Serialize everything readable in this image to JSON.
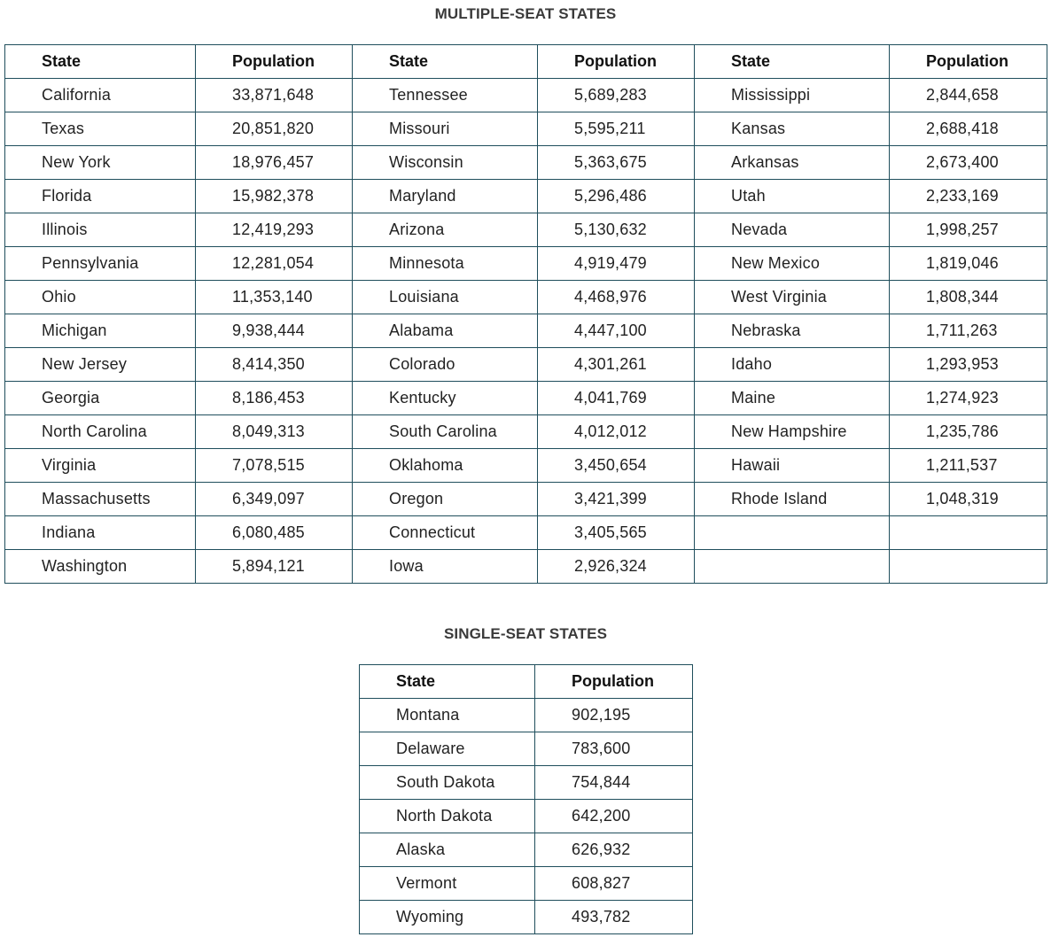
{
  "multi": {
    "title": "MULTIPLE-SEAT STATES",
    "headers": [
      "State",
      "Population",
      "State",
      "Population",
      "State",
      "Population"
    ],
    "rows": [
      [
        "California",
        "33,871,648",
        "Tennessee",
        "5,689,283",
        "Mississippi",
        "2,844,658"
      ],
      [
        "Texas",
        "20,851,820",
        "Missouri",
        "5,595,211",
        "Kansas",
        "2,688,418"
      ],
      [
        "New York",
        "18,976,457",
        "Wisconsin",
        "5,363,675",
        "Arkansas",
        "2,673,400"
      ],
      [
        "Florida",
        "15,982,378",
        "Maryland",
        "5,296,486",
        "Utah",
        "2,233,169"
      ],
      [
        "Illinois",
        "12,419,293",
        "Arizona",
        "5,130,632",
        "Nevada",
        "1,998,257"
      ],
      [
        "Pennsylvania",
        "12,281,054",
        "Minnesota",
        "4,919,479",
        "New Mexico",
        "1,819,046"
      ],
      [
        "Ohio",
        "11,353,140",
        "Louisiana",
        "4,468,976",
        "West Virginia",
        "1,808,344"
      ],
      [
        "Michigan",
        "9,938,444",
        "Alabama",
        "4,447,100",
        "Nebraska",
        "1,711,263"
      ],
      [
        "New Jersey",
        "8,414,350",
        "Colorado",
        "4,301,261",
        "Idaho",
        "1,293,953"
      ],
      [
        "Georgia",
        "8,186,453",
        "Kentucky",
        "4,041,769",
        "Maine",
        "1,274,923"
      ],
      [
        "North Carolina",
        "8,049,313",
        "South Carolina",
        "4,012,012",
        "New Hampshire",
        "1,235,786"
      ],
      [
        "Virginia",
        "7,078,515",
        "Oklahoma",
        "3,450,654",
        "Hawaii",
        "1,211,537"
      ],
      [
        "Massachusetts",
        "6,349,097",
        "Oregon",
        "3,421,399",
        "Rhode Island",
        "1,048,319"
      ],
      [
        "Indiana",
        "6,080,485",
        "Connecticut",
        "3,405,565",
        "",
        ""
      ],
      [
        "Washington",
        "5,894,121",
        "Iowa",
        "2,926,324",
        "",
        ""
      ]
    ]
  },
  "single": {
    "title": "SINGLE-SEAT STATES",
    "headers": [
      "State",
      "Population"
    ],
    "rows": [
      [
        "Montana",
        "902,195"
      ],
      [
        "Delaware",
        "783,600"
      ],
      [
        "South Dakota",
        "754,844"
      ],
      [
        "North Dakota",
        "642,200"
      ],
      [
        "Alaska",
        "626,932"
      ],
      [
        "Vermont",
        "608,827"
      ],
      [
        "Wyoming",
        "493,782"
      ]
    ]
  },
  "colors": {
    "border": "#1f4e5c",
    "heading": "#3a3a3a"
  }
}
